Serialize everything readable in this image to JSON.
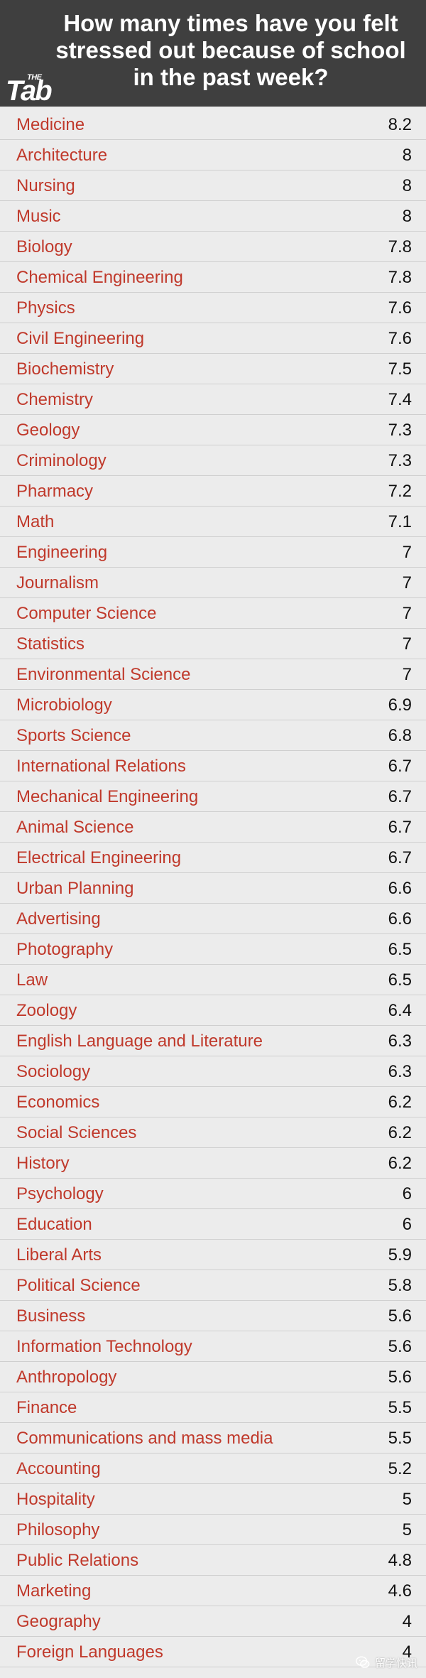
{
  "chart_data": {
    "type": "table",
    "title": "How many times have you felt stressed out because of school in the past week?",
    "logo": "The Tab",
    "categories": [
      "Medicine",
      "Architecture",
      "Nursing",
      "Music",
      "Biology",
      "Chemical Engineering",
      "Physics",
      "Civil Engineering",
      "Biochemistry",
      "Chemistry",
      "Geology",
      "Criminology",
      "Pharmacy",
      "Math",
      "Engineering",
      "Journalism",
      "Computer Science",
      "Statistics",
      "Environmental Science",
      "Microbiology",
      "Sports Science",
      "International Relations",
      "Mechanical Engineering",
      "Animal Science",
      "Electrical Engineering",
      "Urban Planning",
      "Advertising",
      "Photography",
      "Law",
      "Zoology",
      "English Language and Literature",
      "Sociology",
      "Economics",
      "Social Sciences",
      "History",
      "Psychology",
      "Education",
      "Liberal Arts",
      "Political Science",
      "Business",
      "Information Technology",
      "Anthropology",
      "Finance",
      "Communications and mass media",
      "Accounting",
      "Hospitality",
      "Philosophy",
      "Public Relations",
      "Marketing",
      "Geography",
      "Foreign Languages"
    ],
    "values": [
      "8.2",
      "8",
      "8",
      "8",
      "7.8",
      "7.8",
      "7.6",
      "7.6",
      "7.5",
      "7.4",
      "7.3",
      "7.3",
      "7.2",
      "7.1",
      "7",
      "7",
      "7",
      "7",
      "7",
      "6.9",
      "6.8",
      "6.7",
      "6.7",
      "6.7",
      "6.7",
      "6.6",
      "6.6",
      "6.5",
      "6.5",
      "6.4",
      "6.3",
      "6.3",
      "6.2",
      "6.2",
      "6.2",
      "6",
      "6",
      "5.9",
      "5.8",
      "5.6",
      "5.6",
      "5.6",
      "5.5",
      "5.5",
      "5.2",
      "5",
      "5",
      "4.8",
      "4.6",
      "4",
      "4"
    ]
  },
  "watermark": {
    "text": "留学快讯",
    "icon": "wechat-icon"
  },
  "colors": {
    "header_bg": "#3f3f3f",
    "label": "#c0392b",
    "value": "#111111",
    "body_bg": "#ececec"
  }
}
